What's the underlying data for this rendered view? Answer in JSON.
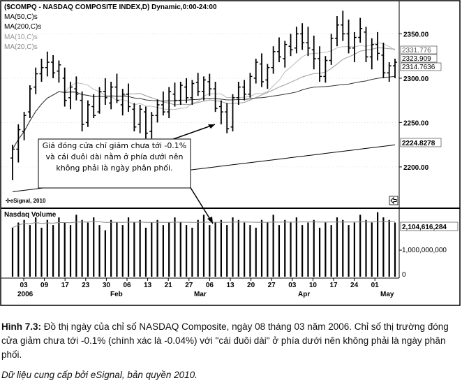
{
  "chart_data": {
    "type": "candlestick",
    "title": "($COMPQ - NASDAQ COMPOSITE INDEX,D) Dynamic,0:00-24:00",
    "legend": [
      "MA(50,C)s",
      "MA(200,C)s",
      "MA(10,C)s",
      "MA(20,C)s"
    ],
    "price_panel": {
      "ylim": [
        2155,
        2385
      ],
      "yticks": [
        2200,
        2250,
        2300,
        2350
      ],
      "ytick_labels": [
        "2200.00",
        "2250.00",
        "2300.00",
        "2350.00"
      ],
      "last_value_labels": [
        "2331.776",
        "2323.909",
        "2314.7636",
        "2224.8278"
      ],
      "bars": [
        [
          2210,
          2225,
          2185,
          2220
        ],
        [
          2220,
          2248,
          2205,
          2242
        ],
        [
          2240,
          2262,
          2230,
          2258
        ],
        [
          2262,
          2292,
          2255,
          2288
        ],
        [
          2290,
          2312,
          2282,
          2305
        ],
        [
          2305,
          2322,
          2296,
          2312
        ],
        [
          2312,
          2330,
          2302,
          2318
        ],
        [
          2318,
          2326,
          2300,
          2306
        ],
        [
          2308,
          2320,
          2295,
          2315
        ],
        [
          2300,
          2312,
          2268,
          2275
        ],
        [
          2278,
          2296,
          2265,
          2290
        ],
        [
          2288,
          2302,
          2275,
          2282
        ],
        [
          2275,
          2285,
          2240,
          2248
        ],
        [
          2250,
          2275,
          2245,
          2270
        ],
        [
          2268,
          2282,
          2255,
          2258
        ],
        [
          2262,
          2290,
          2260,
          2285
        ],
        [
          2285,
          2300,
          2270,
          2278
        ],
        [
          2272,
          2296,
          2265,
          2290
        ],
        [
          2290,
          2305,
          2272,
          2275
        ],
        [
          2270,
          2288,
          2258,
          2282
        ],
        [
          2282,
          2294,
          2262,
          2268
        ],
        [
          2265,
          2272,
          2240,
          2245
        ],
        [
          2248,
          2270,
          2238,
          2265
        ],
        [
          2262,
          2268,
          2232,
          2238
        ],
        [
          2240,
          2262,
          2232,
          2258
        ],
        [
          2258,
          2276,
          2250,
          2270
        ],
        [
          2270,
          2285,
          2258,
          2262
        ],
        [
          2262,
          2290,
          2255,
          2285
        ],
        [
          2282,
          2295,
          2268,
          2275
        ],
        [
          2275,
          2296,
          2270,
          2292
        ],
        [
          2290,
          2300,
          2272,
          2278
        ],
        [
          2278,
          2298,
          2270,
          2294
        ],
        [
          2295,
          2306,
          2280,
          2285
        ],
        [
          2285,
          2302,
          2275,
          2298
        ],
        [
          2296,
          2305,
          2280,
          2288
        ],
        [
          2288,
          2296,
          2262,
          2266
        ],
        [
          2268,
          2275,
          2248,
          2262
        ],
        [
          2262,
          2272,
          2238,
          2243
        ],
        [
          2245,
          2282,
          2240,
          2278
        ],
        [
          2278,
          2296,
          2270,
          2290
        ],
        [
          2290,
          2298,
          2275,
          2282
        ],
        [
          2282,
          2306,
          2278,
          2302
        ],
        [
          2300,
          2322,
          2294,
          2318
        ],
        [
          2316,
          2328,
          2290,
          2296
        ],
        [
          2298,
          2316,
          2288,
          2312
        ],
        [
          2312,
          2336,
          2305,
          2330
        ],
        [
          2330,
          2346,
          2318,
          2324
        ],
        [
          2322,
          2342,
          2312,
          2338
        ],
        [
          2336,
          2350,
          2325,
          2332
        ],
        [
          2334,
          2358,
          2328,
          2350
        ],
        [
          2350,
          2362,
          2332,
          2340
        ],
        [
          2340,
          2358,
          2325,
          2334
        ],
        [
          2332,
          2348,
          2310,
          2322
        ],
        [
          2322,
          2336,
          2296,
          2302
        ],
        [
          2302,
          2325,
          2295,
          2320
        ],
        [
          2320,
          2350,
          2315,
          2345
        ],
        [
          2345,
          2370,
          2336,
          2360
        ],
        [
          2360,
          2376,
          2342,
          2350
        ],
        [
          2350,
          2366,
          2328,
          2334
        ],
        [
          2334,
          2352,
          2318,
          2346
        ],
        [
          2346,
          2368,
          2340,
          2356
        ],
        [
          2352,
          2358,
          2318,
          2324
        ],
        [
          2324,
          2345,
          2310,
          2338
        ],
        [
          2338,
          2352,
          2320,
          2328
        ],
        [
          2326,
          2340,
          2300,
          2306
        ],
        [
          2306,
          2318,
          2296,
          2314
        ],
        [
          2314,
          2322,
          2300,
          2318
        ]
      ]
    },
    "volume_panel": {
      "title": "Nasdaq Volume",
      "ylim": [
        0,
        2600000000
      ],
      "yticks": [
        1000000000
      ],
      "ytick_labels": [
        "1,000,000,000"
      ],
      "last_value_label": "2,104,616,284",
      "values": [
        1900000000.0,
        2100000000.0,
        2200000000.0,
        2000000000.0,
        2300000000.0,
        1900000000.0,
        2200000000.0,
        2000000000.0,
        2300000000.0,
        2100000000.0,
        2000000000.0,
        2400000000.0,
        2200000000.0,
        2100000000.0,
        2300000000.0,
        2000000000.0,
        1800000000.0,
        2200000000.0,
        2100000000.0,
        2000000000.0,
        2300000000.0,
        2100000000.0,
        2200000000.0,
        1900000000.0,
        2100000000.0,
        2200000000.0,
        2000000000.0,
        2100000000.0,
        2300000000.0,
        2100000000.0,
        2000000000.0,
        1900000000.0,
        2200000000.0,
        2400000000.0,
        2000000000.0,
        2100000000.0,
        2200000000.0,
        2000000000.0,
        2300000000.0,
        2200000000.0,
        2100000000.0,
        2000000000.0,
        1900000000.0,
        2200000000.0,
        2100000000.0,
        2400000000.0,
        2000000000.0,
        2200000000.0,
        2100000000.0,
        2300000000.0,
        2000000000.0,
        2100000000.0,
        2200000000.0,
        1900000000.0,
        2100000000.0,
        2000000000.0,
        2300000000.0,
        2200000000.0,
        2000000000.0,
        2100000000.0,
        2400000000.0,
        2200000000.0,
        2100000000.0,
        2500000000.0,
        2300000000.0,
        2200000000.0,
        2100000000.0
      ]
    },
    "x_tick_labels": [
      "03",
      "09",
      "17",
      "23",
      "30",
      "06",
      "13",
      "21",
      "27",
      "06",
      "13",
      "20",
      "27",
      "03",
      "10",
      "17",
      "24",
      "01"
    ],
    "x_tick_bar_index": [
      0,
      4,
      10,
      14,
      19,
      23,
      28,
      33,
      37,
      42,
      47,
      52,
      57,
      62,
      66,
      70,
      75,
      80
    ],
    "month_labels": [
      "2006",
      "Feb",
      "Mar",
      "Apr",
      "May"
    ],
    "watermark": "eSignal, 2010",
    "icon": "scroll-arrow-icon"
  },
  "annotation": {
    "text": "Giá đóng cửa chỉ giảm chưa tới -0.1% và cái đuôi dài nằm ở phía dưới nên không phải là ngày phân phối."
  },
  "caption": {
    "figure_label": "Hình 7.3:",
    "text": " Đồ thị ngày của chỉ số NASDAQ Composite, ngày 08 tháng 03 năm 2006. Chỉ số thị trường đóng cửa giảm chưa tới -0.1% (chính xác là -0.04%) với \"cái đuôi dài\" ở phía dưới nên không phải là ngày phân phối.",
    "source": "Dữ liệu cung cấp bởi eSignal, bản quyền 2010."
  }
}
